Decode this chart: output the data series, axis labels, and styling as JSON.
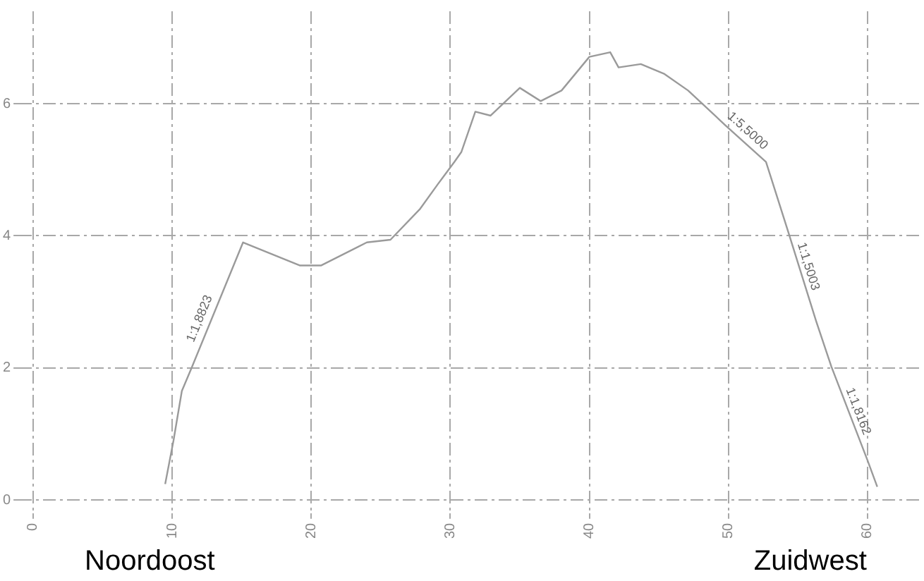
{
  "chart_data": {
    "type": "line",
    "x": [
      9.5,
      10.1,
      10.7,
      11.4,
      15.1,
      19.2,
      20.7,
      24,
      25.7,
      27.8,
      29.1,
      30.3,
      30.8,
      31.8,
      32.9,
      35,
      36.5,
      38,
      40,
      41.5,
      42.1,
      43.7,
      45.4,
      47.1,
      49.8,
      52.7,
      54.3,
      56.3,
      57.4,
      60,
      60.7
    ],
    "series": [
      {
        "color": "#9a9a9a",
        "values": [
          0.24,
          0.9,
          1.65,
          2.0,
          3.9,
          3.55,
          3.55,
          3.9,
          3.94,
          4.4,
          4.78,
          5.12,
          5.27,
          5.88,
          5.82,
          6.24,
          6.04,
          6.2,
          6.71,
          6.78,
          6.55,
          6.6,
          6.45,
          6.2,
          5.67,
          5.12,
          4.06,
          2.71,
          2.02,
          0.6,
          0.2
        ]
      }
    ],
    "xlim": [
      -1,
      64
    ],
    "xticks": [
      0,
      10,
      20,
      30,
      40,
      50,
      60
    ],
    "ylim": [
      -0.2,
      7.4
    ],
    "yticks": [
      0,
      2,
      4,
      6
    ],
    "grid": true,
    "marker": "none",
    "line_style": "solid",
    "annotations": [
      {
        "text": "1:1,8823",
        "x": 12.5,
        "y": 2.7
      },
      {
        "text": "1:5,5000",
        "x": 51,
        "y": 5.5
      },
      {
        "text": "1:1,5003",
        "x": 55.2,
        "y": 3.5
      },
      {
        "text": "1:1,8162",
        "x": 58.8,
        "y": 1.3
      },
      "Noordoost",
      "Zuidwest"
    ]
  }
}
